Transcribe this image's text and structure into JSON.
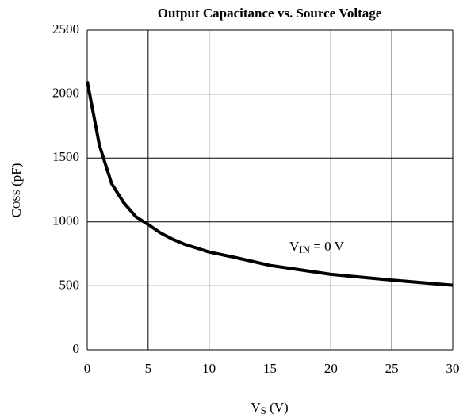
{
  "chart_data": {
    "type": "line",
    "title": "Output Capacitance vs. Source Voltage",
    "y_label": [
      "C",
      "OSS",
      " (pF)"
    ],
    "x_label": [
      "V",
      "S",
      " (V)"
    ],
    "annotation": [
      "V",
      "IN",
      " = 0 V"
    ],
    "x": [
      0,
      0.5,
      1,
      2,
      3,
      4,
      5,
      6,
      7,
      8,
      10,
      12,
      15,
      20,
      25,
      30
    ],
    "series": [
      {
        "color": "#000000",
        "values": [
          2100,
          1850,
          1600,
          1300,
          1150,
          1040,
          980,
          915,
          865,
          825,
          765,
          725,
          660,
          590,
          545,
          505
        ]
      }
    ],
    "xlim": [
      0,
      30
    ],
    "xticks": [
      0,
      5,
      10,
      15,
      20,
      25,
      30
    ],
    "ylim": [
      0,
      2500
    ],
    "yticks": [
      0,
      500,
      1000,
      1500,
      2000,
      2500
    ],
    "grid": true
  }
}
